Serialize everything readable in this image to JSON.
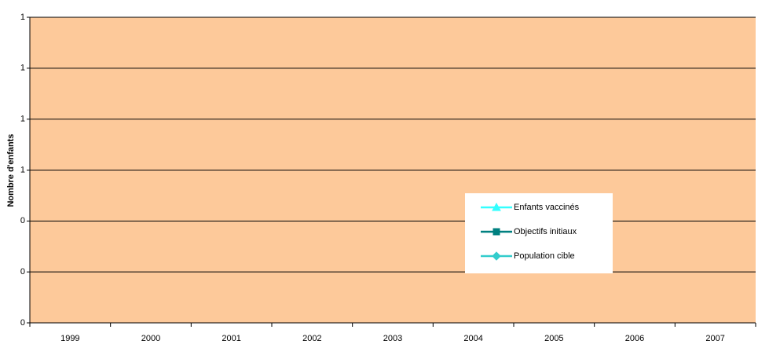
{
  "chart_data": {
    "type": "line",
    "y_label": "Nombre d'enfants",
    "categories": [
      "1999",
      "2000",
      "2001",
      "2002",
      "2003",
      "2004",
      "2005",
      "2006",
      "2007"
    ],
    "series": [
      {
        "name": "Enfants vaccinés",
        "color": "#33ffff",
        "marker": "triangle",
        "values": [
          null,
          null,
          null,
          null,
          null,
          null,
          null,
          null,
          null
        ]
      },
      {
        "name": "Objectifs initiaux",
        "color": "#008080",
        "marker": "square",
        "values": [
          null,
          null,
          null,
          null,
          null,
          null,
          null,
          null,
          null
        ]
      },
      {
        "name": "Population cible",
        "color": "#33cccc",
        "marker": "diamond",
        "values": [
          null,
          null,
          null,
          null,
          null,
          null,
          null,
          null,
          null
        ]
      }
    ],
    "ylim": [
      0,
      1.2
    ],
    "yticks": [
      {
        "value": 0,
        "label": "0"
      },
      {
        "value": 0.2,
        "label": "0"
      },
      {
        "value": 0.4,
        "label": "0"
      },
      {
        "value": 0.6,
        "label": "1"
      },
      {
        "value": 0.8,
        "label": "1"
      },
      {
        "value": 1.0,
        "label": "1"
      },
      {
        "value": 1.2,
        "label": "1"
      }
    ],
    "grid": true,
    "plot_background": "#fdc99a"
  }
}
